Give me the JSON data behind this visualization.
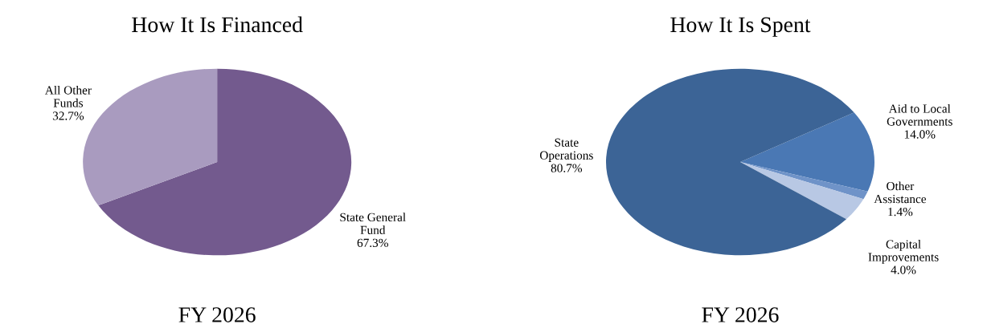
{
  "chart_data": [
    {
      "type": "pie",
      "title": "How It Is Financed",
      "categories": [
        "State General\nFund",
        "All Other\nFunds"
      ],
      "values": [
        67.3,
        32.7
      ],
      "value_labels": [
        "67.3%",
        "32.7%"
      ],
      "colors": [
        "#735a8e",
        "#a99bbf"
      ],
      "annotations": [
        "FY 2026"
      ]
    },
    {
      "type": "pie",
      "title": "How It Is Spent",
      "categories": [
        "Aid to Local\nGovernments",
        "Other\nAssistance",
        "Capital\nImprovements",
        "State\nOperations"
      ],
      "values": [
        14.0,
        1.4,
        4.0,
        80.7
      ],
      "value_labels": [
        "14.0%",
        "1.4%",
        "4.0%",
        "80.7%"
      ],
      "colors": [
        "#4a78b4",
        "#6f93c8",
        "#b8c8e4",
        "#3c6496"
      ],
      "annotations": [
        "FY 2026"
      ]
    }
  ]
}
